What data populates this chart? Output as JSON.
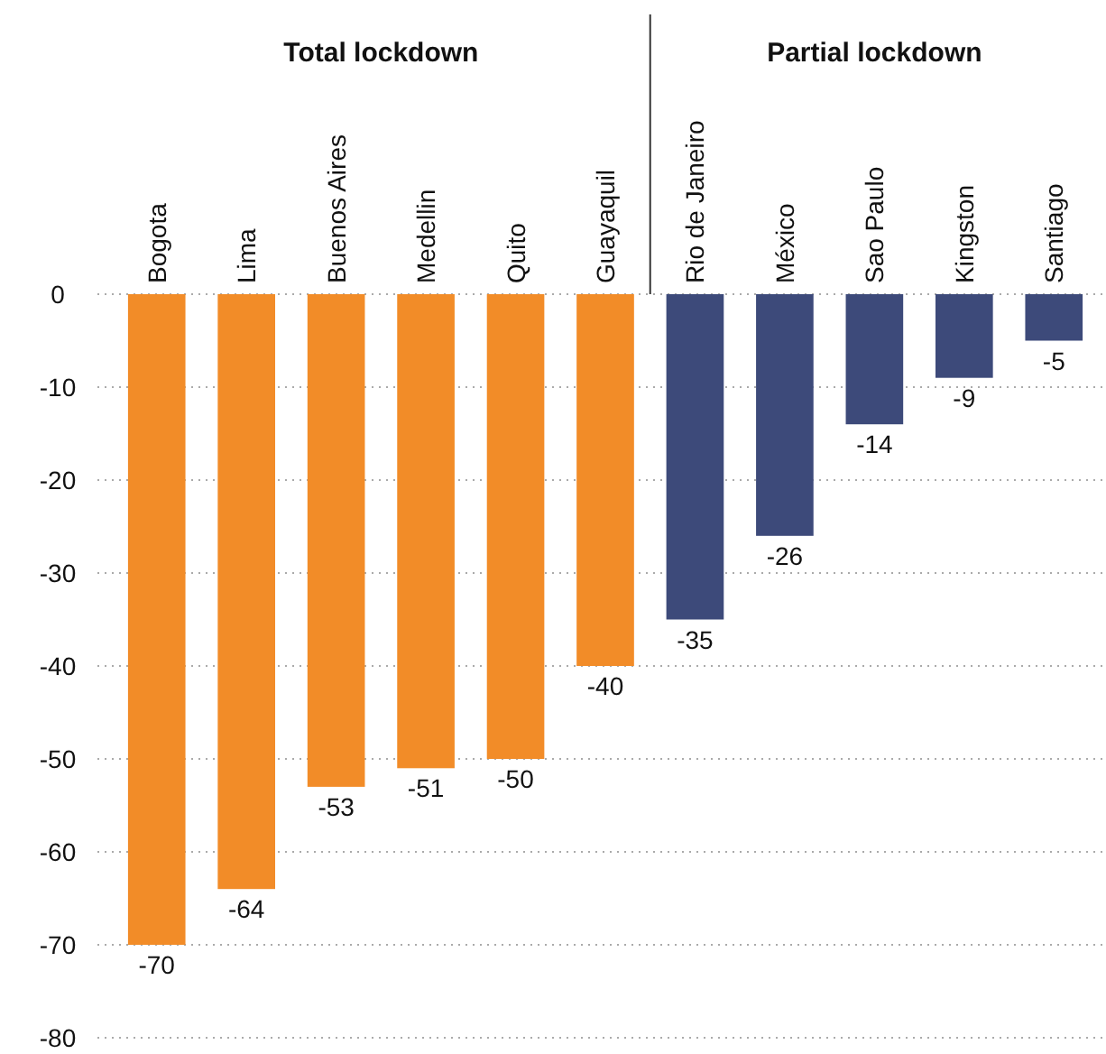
{
  "chart_data": {
    "type": "bar",
    "categories": [
      "Bogota",
      "Lima",
      "Buenos Aires",
      "Medellin",
      "Quito",
      "Guayaquil",
      "Rio de Janeiro",
      "México",
      "Sao Paulo",
      "Kingston",
      "Santiago"
    ],
    "values": [
      -70,
      -64,
      -53,
      -51,
      -50,
      -40,
      -35,
      -26,
      -14,
      -9,
      -5
    ],
    "colors": [
      "#f28c28",
      "#f28c28",
      "#f28c28",
      "#f28c28",
      "#f28c28",
      "#f28c28",
      "#3d4a7a",
      "#3d4a7a",
      "#3d4a7a",
      "#3d4a7a",
      "#3d4a7a"
    ],
    "ylim": [
      -80,
      0
    ],
    "yticks": [
      0,
      -10,
      -20,
      -30,
      -40,
      -50,
      -60,
      -70,
      -80
    ],
    "grid": "y",
    "data_labels": true,
    "annotations": [
      "Total lockdown",
      "Partial lockdown"
    ]
  }
}
